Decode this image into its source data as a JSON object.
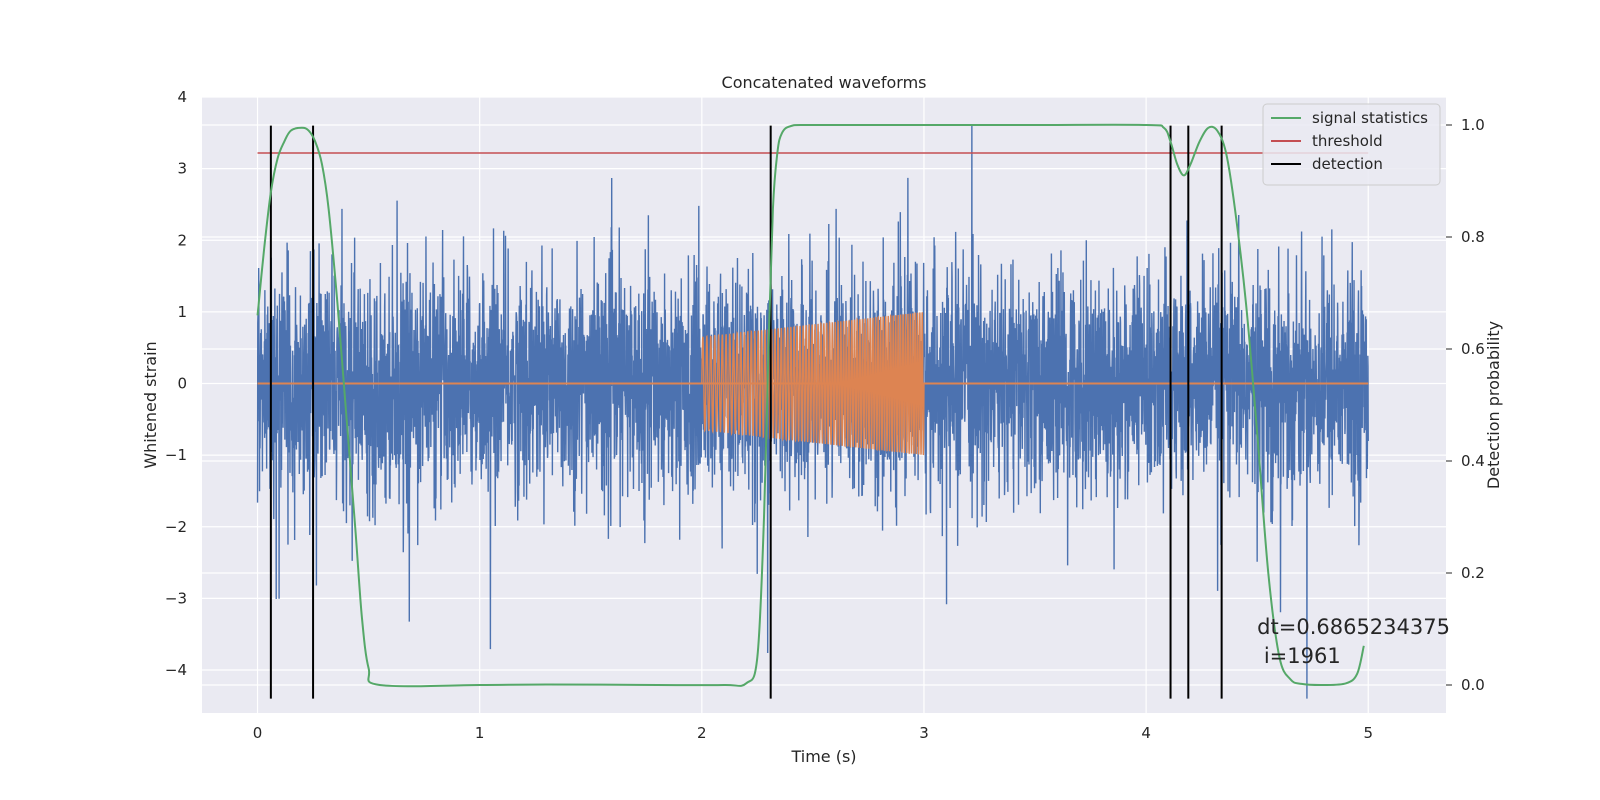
{
  "chart_data": {
    "type": "line",
    "title": "Concatenated waveforms",
    "xlabel": "Time (s)",
    "ylabel": "Whitened strain",
    "y2label": "Detection probability",
    "xlim": [
      -0.25,
      5.35
    ],
    "ylim": [
      -4.6,
      4.0
    ],
    "y2lim": [
      -0.05,
      1.05
    ],
    "x_ticks": [
      0,
      1,
      2,
      3,
      4,
      5
    ],
    "y_ticks": [
      -4,
      -3,
      -2,
      -1,
      0,
      1,
      2,
      3,
      4
    ],
    "y2_ticks": [
      0.0,
      0.2,
      0.4,
      0.6,
      0.8,
      1.0
    ],
    "y2_tick_labels": [
      "0.0",
      "0.2",
      "0.4",
      "0.6",
      "0.8",
      "1.0"
    ],
    "grid": true,
    "legend_position": "top-right",
    "series": [
      {
        "kind": "noise",
        "color": "#4c72b0",
        "x_range": [
          0,
          5
        ],
        "typical_amplitude": [
          -1.5,
          1.5
        ],
        "peak_amplitude": [
          -4.4,
          3.6
        ]
      },
      {
        "kind": "chirp",
        "color": "#dd8452",
        "x_range": [
          2.0,
          3.0
        ],
        "baseline": 0,
        "amplitude_start": 0.65,
        "amplitude_end": 1.0
      },
      {
        "name": "signal statistics",
        "color": "#55a868",
        "axis": "right",
        "x": [
          0,
          0.03,
          0.06,
          0.09,
          0.12,
          0.15,
          0.2,
          0.23,
          0.26,
          0.29,
          0.32,
          0.36,
          0.4,
          0.44,
          0.47,
          0.5,
          0.55,
          1.0,
          1.3,
          1.8,
          2.1,
          2.2,
          2.25,
          2.28,
          2.3,
          2.32,
          2.34,
          2.36,
          2.4,
          2.5,
          3.0,
          3.5,
          4.0,
          4.08,
          4.11,
          4.14,
          4.17,
          4.2,
          4.24,
          4.28,
          4.32,
          4.36,
          4.4,
          4.45,
          4.5,
          4.55,
          4.6,
          4.65,
          4.7,
          4.8,
          4.9,
          4.95,
          4.98
        ],
        "y": [
          0.66,
          0.78,
          0.88,
          0.94,
          0.97,
          0.99,
          0.995,
          0.99,
          0.97,
          0.93,
          0.85,
          0.68,
          0.48,
          0.28,
          0.12,
          0.03,
          0.0,
          0.0,
          0.001,
          0.0,
          0.0,
          0.003,
          0.05,
          0.3,
          0.6,
          0.85,
          0.95,
          0.985,
          0.998,
          1.0,
          1.0,
          1.0,
          1.0,
          0.995,
          0.97,
          0.93,
          0.91,
          0.93,
          0.97,
          0.995,
          0.99,
          0.95,
          0.85,
          0.68,
          0.45,
          0.2,
          0.05,
          0.01,
          0.002,
          0.0,
          0.003,
          0.02,
          0.07
        ]
      },
      {
        "name": "threshold",
        "color": "#c44e52",
        "axis": "right",
        "x": [
          0,
          5
        ],
        "y": [
          0.95,
          0.95
        ]
      },
      {
        "name": "detection",
        "color": "#000000",
        "kind": "vlines",
        "x": [
          0.06,
          0.25,
          2.31,
          4.11,
          4.19,
          4.34
        ],
        "ymin": -4.4,
        "ymax": 3.6
      }
    ],
    "annotations": [
      {
        "text": "dt=0.6865234375",
        "x": 4.5,
        "y": -3.5
      },
      {
        "text": "i=1961",
        "x": 4.53,
        "y": -3.9
      }
    ]
  }
}
